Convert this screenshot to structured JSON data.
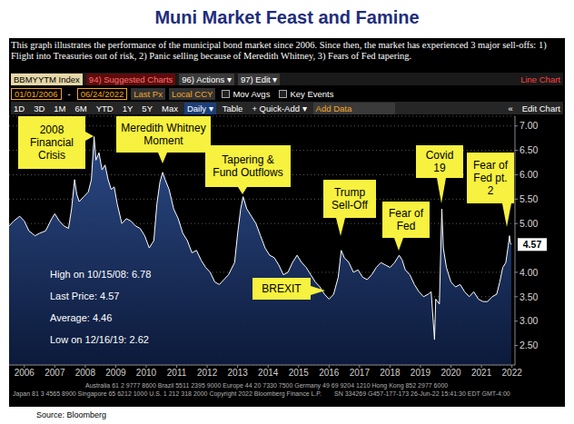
{
  "chart_data": {
    "type": "area",
    "title": "Muni Market Feast and Famine",
    "subtitle": "This graph illustrates the performance of the municipal bond market since 2006. Since then, the market has experienced 3 major sell-offs: 1) Flight into Treasuries out of risk, 2) Panic selling because of Meredith Whitney, 3) Fears of Fed tapering.",
    "toolbar": {
      "row1": [
        "BBMYYTM Index",
        "94) Suggested Charts",
        "96) Actions ▾",
        "97) Edit ▾",
        "Line Chart"
      ],
      "row2": [
        "01/01/2006",
        "-",
        "06/24/2022",
        "Last Px",
        "Local CCY",
        "Mov Avgs",
        "Key Events"
      ],
      "row3": [
        "1D",
        "3D",
        "1M",
        "6M",
        "YTD",
        "1Y",
        "5Y",
        "Max",
        "Daily ▾",
        "Table",
        "+ Quick-Add ▾",
        "Add Data",
        "«",
        "Edit Chart"
      ]
    },
    "x": [
      2006,
      2006.15,
      2006.35,
      2006.5,
      2006.65,
      2006.85,
      2007,
      2007.2,
      2007.4,
      2007.5,
      2007.65,
      2007.8,
      2007.95,
      2008.05,
      2008.15,
      2008.22,
      2008.3,
      2008.45,
      2008.6,
      2008.7,
      2008.79,
      2008.85,
      2008.95,
      2009.05,
      2009.15,
      2009.25,
      2009.35,
      2009.45,
      2009.55,
      2009.7,
      2009.85,
      2010,
      2010.15,
      2010.3,
      2010.45,
      2010.6,
      2010.75,
      2010.85,
      2010.95,
      2011.04,
      2011.12,
      2011.25,
      2011.4,
      2011.55,
      2011.7,
      2011.85,
      2012,
      2012.15,
      2012.3,
      2012.45,
      2012.6,
      2012.75,
      2012.9,
      2013.05,
      2013.2,
      2013.4,
      2013.5,
      2013.6,
      2013.68,
      2013.8,
      2013.95,
      2014.1,
      2014.25,
      2014.4,
      2014.55,
      2014.7,
      2014.85,
      2015,
      2015.15,
      2015.3,
      2015.45,
      2015.6,
      2015.75,
      2015.9,
      2016.05,
      2016.2,
      2016.35,
      2016.5,
      2016.65,
      2016.8,
      2016.9,
      2017,
      2017.15,
      2017.3,
      2017.45,
      2017.6,
      2017.75,
      2017.9,
      2018.05,
      2018.2,
      2018.35,
      2018.5,
      2018.65,
      2018.8,
      2018.9,
      2019,
      2019.15,
      2019.3,
      2019.45,
      2019.6,
      2019.75,
      2019.85,
      2019.96,
      2020,
      2020.12,
      2020.2,
      2020.25,
      2020.35,
      2020.5,
      2020.65,
      2020.8,
      2020.95,
      2021.1,
      2021.25,
      2021.4,
      2021.55,
      2021.7,
      2021.85,
      2022,
      2022.1,
      2022.2,
      2022.3,
      2022.38,
      2022.42,
      2022.45,
      2022.48
    ],
    "values": [
      4.95,
      5.05,
      5.15,
      5.05,
      4.85,
      4.75,
      4.8,
      4.85,
      5.1,
      5.2,
      5.05,
      4.95,
      4.9,
      5.3,
      5.9,
      5.6,
      5.45,
      5.55,
      5.65,
      5.9,
      6.78,
      6.3,
      6.45,
      6.1,
      6.2,
      5.9,
      5.7,
      5.75,
      5.4,
      5,
      5.1,
      5.05,
      4.95,
      4.9,
      4.75,
      4.5,
      4.65,
      5.4,
      5.85,
      6.05,
      5.9,
      5.7,
      5.3,
      5.1,
      4.8,
      4.65,
      4.4,
      4.45,
      4.25,
      4.1,
      4,
      3.8,
      3.75,
      3.85,
      3.95,
      4.2,
      4.8,
      5.3,
      5.55,
      5.3,
      5.15,
      5,
      4.75,
      4.5,
      4.35,
      4.3,
      4.15,
      3.95,
      4,
      4.2,
      4.35,
      4.2,
      4.1,
      3.95,
      3.8,
      3.7,
      3.55,
      3.45,
      3.55,
      3.9,
      4.45,
      4.3,
      4.2,
      4,
      4.05,
      3.9,
      3.85,
      3.95,
      4.1,
      4.2,
      4.15,
      4.1,
      4.2,
      4.35,
      4.25,
      4.05,
      3.95,
      3.75,
      3.6,
      3.5,
      3.55,
      3.6,
      2.62,
      3.45,
      3.35,
      5.3,
      4.5,
      4.1,
      3.8,
      3.7,
      3.75,
      3.6,
      3.5,
      3.6,
      3.45,
      3.4,
      3.4,
      3.5,
      3.55,
      3.8,
      4.1,
      4.2,
      4.55,
      4.75,
      4.6,
      4.57
    ],
    "color": "#ffffff",
    "xlim": [
      2006,
      2022.6
    ],
    "xticks": [
      {
        "value": 2006.5,
        "label": "2006"
      },
      {
        "value": 2007.5,
        "label": "2007"
      },
      {
        "value": 2008.5,
        "label": "2008"
      },
      {
        "value": 2009.5,
        "label": "2009"
      },
      {
        "value": 2010.5,
        "label": "2010"
      },
      {
        "value": 2011.5,
        "label": "2011"
      },
      {
        "value": 2012.5,
        "label": "2012"
      },
      {
        "value": 2013.5,
        "label": "2013"
      },
      {
        "value": 2014.5,
        "label": "2014"
      },
      {
        "value": 2015.5,
        "label": "2015"
      },
      {
        "value": 2016.5,
        "label": "2016"
      },
      {
        "value": 2017.5,
        "label": "2017"
      },
      {
        "value": 2018.5,
        "label": "2018"
      },
      {
        "value": 2019.5,
        "label": "2019"
      },
      {
        "value": 2020.5,
        "label": "2020"
      },
      {
        "value": 2021.5,
        "label": "2021"
      },
      {
        "value": 2022.5,
        "label": "2022"
      }
    ],
    "ylim": [
      2.1,
      7.2
    ],
    "yticks": [
      {
        "value": 2.5,
        "label": "2.50"
      },
      {
        "value": 3,
        "label": "3.00"
      },
      {
        "value": 3.5,
        "label": "3.50"
      },
      {
        "value": 4,
        "label": "4.00"
      },
      {
        "value": 5,
        "label": "5.00"
      },
      {
        "value": 5.5,
        "label": "5.50"
      },
      {
        "value": 6,
        "label": "6.00"
      },
      {
        "value": 6.5,
        "label": "6.50"
      },
      {
        "value": 7,
        "label": "7.00"
      }
    ],
    "grid": true,
    "annotations": [
      "2008 Financial Crisis",
      "Meredith Whitney Moment",
      "Tapering & Fund Outflows",
      "Trump Sell-Off",
      "Fear of Fed",
      "Covid 19",
      "Fear of Fed pt. 2",
      "BREXIT"
    ],
    "stats": [
      "High on 10/15/08: 6.78",
      "Last Price: 4.57",
      "Average: 4.46",
      "Low on 12/16/19: 2.62"
    ],
    "footer": [
      "Australia 61 2 9777 8600 Brazil 5511 2395 9000 Europe 44 20 7330 7500 Germany 49 69 9204 1210 Hong Kong 852 2977 6000",
      "Japan 81 3 4565 8900 Singapore 65 6212 1000 U.S. 1 212 318 2000 Copyright 2022 Bloomberg Finance L.P.",
      "SN 334269 G457-177-173 26-Jun-22 15:41:30 EDT GMT-4:00"
    ],
    "source": "Source: Bloomberg"
  }
}
